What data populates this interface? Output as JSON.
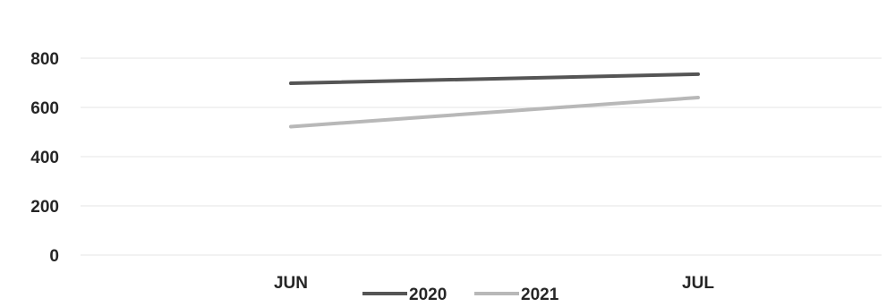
{
  "chart_data": {
    "type": "line",
    "title": "",
    "xlabel": "",
    "ylabel": "",
    "categories": [
      "JUN",
      "JUL"
    ],
    "ylim": [
      0,
      800
    ],
    "yticks": [
      0,
      200,
      400,
      600,
      800
    ],
    "grid": true,
    "legend_position": "bottom",
    "series": [
      {
        "name": "2020",
        "values": [
          698,
          735
        ],
        "color": "#555555"
      },
      {
        "name": "2021",
        "values": [
          522,
          640
        ],
        "color": "#b8b8b8"
      }
    ]
  }
}
